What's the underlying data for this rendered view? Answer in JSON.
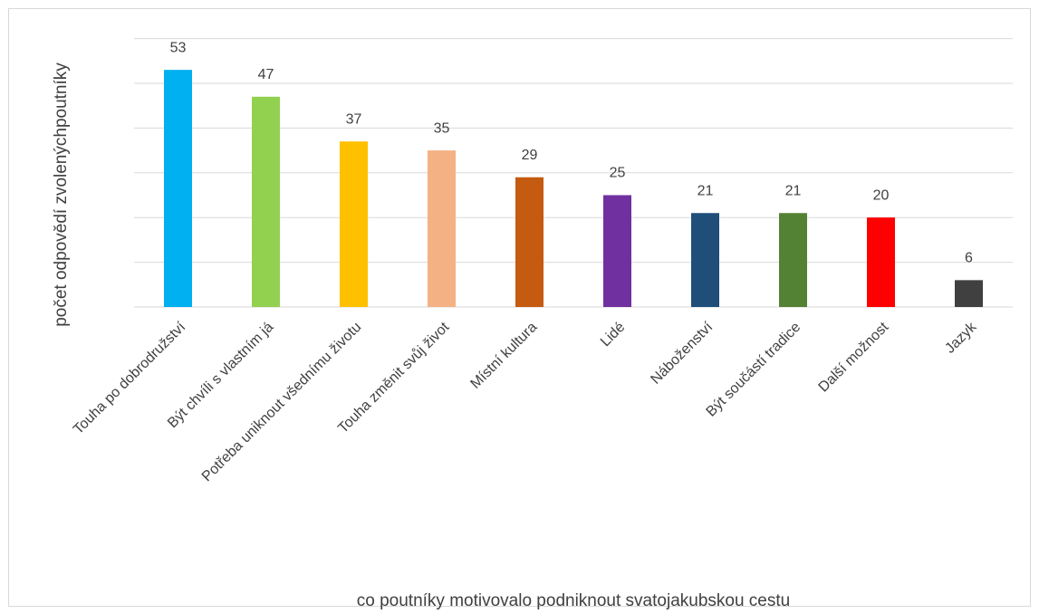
{
  "chart_data": {
    "type": "bar",
    "x_label": "co poutníky motivovalo podniknout svatojakubskou cestu",
    "y_label": "počet odpovědí zvolenýchpoutníky",
    "categories": [
      "Touha po dobrodružství",
      "Být chvíli s vlastním já",
      "Potřeba uniknout všednímu životu",
      "Touha změnit svůj život",
      "Místní kultura",
      "Lidé",
      "Náboženství",
      "Být součástí tradice",
      "Další možnost",
      "Jazyk"
    ],
    "values": [
      53,
      47,
      37,
      35,
      29,
      25,
      21,
      21,
      20,
      6
    ],
    "colors": [
      "#00b0f0",
      "#92d050",
      "#ffc000",
      "#f4b183",
      "#c55a11",
      "#7030a0",
      "#1f4e79",
      "#548235",
      "#ff0000",
      "#404040"
    ],
    "ylim": [
      0,
      60
    ],
    "yticks": [
      0,
      10,
      20,
      30,
      40,
      50,
      60
    ],
    "grid": true
  }
}
